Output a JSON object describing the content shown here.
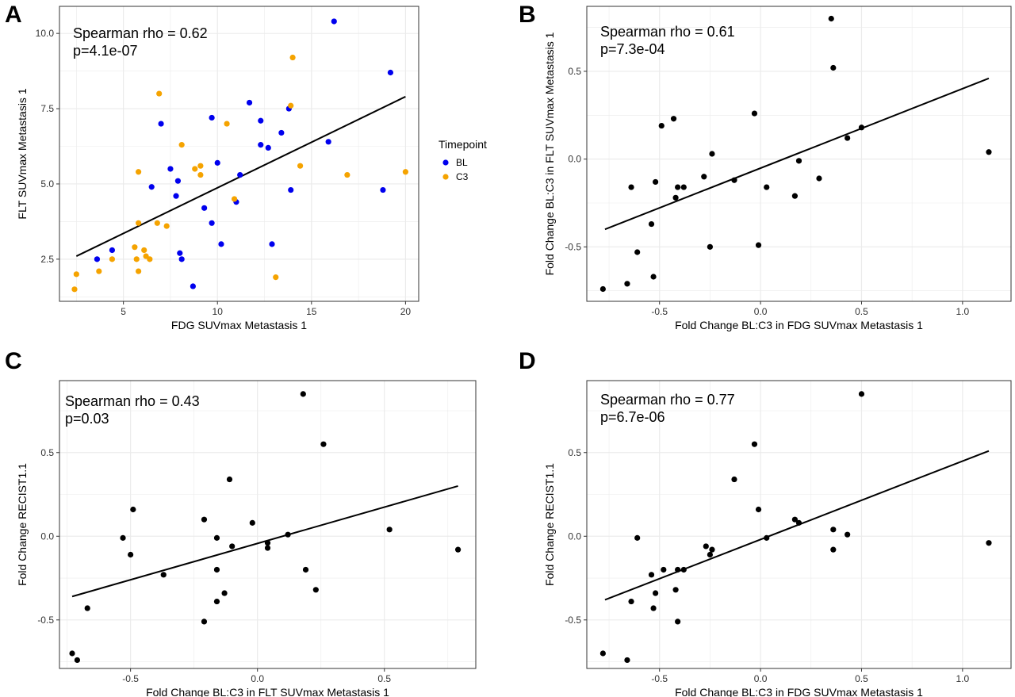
{
  "colors": {
    "BL": "#0000ee",
    "C3": "#f5a300",
    "points": "#000000",
    "grid": "#ebebeb",
    "frame": "#333333"
  },
  "chart_data": [
    {
      "panel": "A",
      "type": "scatter",
      "xlabel": "FDG SUVmax Metastasis 1",
      "ylabel": "FLT SUVmax Metastasis 1",
      "annotation": [
        "Spearman rho = 0.62",
        "p=4.1e-07"
      ],
      "xlim": [
        1.6,
        20.7
      ],
      "ylim": [
        1.1,
        10.9
      ],
      "xticks": [
        5,
        10,
        15,
        20
      ],
      "xtick_labels": [
        "5",
        "10",
        "15",
        "20"
      ],
      "yticks": [
        2.5,
        5.0,
        7.5,
        10.0
      ],
      "ytick_labels": [
        "2.5",
        "5.0",
        "7.5",
        "10.0"
      ],
      "legend": {
        "title": "Timepoint",
        "entries": [
          "BL",
          "C3"
        ],
        "placement": "right"
      },
      "fit_line": [
        [
          2.5,
          2.6
        ],
        [
          20.0,
          7.9
        ]
      ],
      "series": [
        {
          "name": "BL",
          "color_key": "BL",
          "points": [
            [
              16.2,
              10.4
            ],
            [
              19.2,
              8.7
            ],
            [
              11.7,
              7.7
            ],
            [
              13.8,
              7.5
            ],
            [
              9.7,
              7.2
            ],
            [
              12.3,
              7.1
            ],
            [
              7.0,
              7.0
            ],
            [
              13.4,
              6.7
            ],
            [
              12.3,
              6.3
            ],
            [
              12.7,
              6.2
            ],
            [
              15.9,
              6.4
            ],
            [
              10.0,
              5.7
            ],
            [
              7.5,
              5.5
            ],
            [
              11.2,
              5.3
            ],
            [
              7.9,
              5.1
            ],
            [
              6.5,
              4.9
            ],
            [
              13.9,
              4.8
            ],
            [
              18.8,
              4.8
            ],
            [
              7.8,
              4.6
            ],
            [
              11.0,
              4.4
            ],
            [
              9.3,
              4.2
            ],
            [
              9.7,
              3.7
            ],
            [
              10.2,
              3.0
            ],
            [
              12.9,
              3.0
            ],
            [
              4.4,
              2.8
            ],
            [
              8.0,
              2.7
            ],
            [
              3.6,
              2.5
            ],
            [
              8.1,
              2.5
            ],
            [
              8.7,
              1.6
            ]
          ]
        },
        {
          "name": "C3",
          "color_key": "C3",
          "points": [
            [
              14.0,
              9.2
            ],
            [
              6.9,
              8.0
            ],
            [
              13.9,
              7.6
            ],
            [
              10.5,
              7.0
            ],
            [
              8.1,
              6.3
            ],
            [
              5.8,
              5.4
            ],
            [
              14.4,
              5.6
            ],
            [
              9.1,
              5.6
            ],
            [
              8.8,
              5.5
            ],
            [
              9.1,
              5.3
            ],
            [
              16.9,
              5.3
            ],
            [
              20.0,
              5.4
            ],
            [
              10.9,
              4.5
            ],
            [
              5.8,
              3.7
            ],
            [
              6.8,
              3.7
            ],
            [
              7.3,
              3.6
            ],
            [
              5.6,
              2.9
            ],
            [
              6.1,
              2.8
            ],
            [
              6.2,
              2.6
            ],
            [
              4.4,
              2.5
            ],
            [
              5.7,
              2.5
            ],
            [
              6.4,
              2.5
            ],
            [
              3.7,
              2.1
            ],
            [
              5.8,
              2.1
            ],
            [
              2.5,
              2.0
            ],
            [
              13.1,
              1.9
            ],
            [
              2.4,
              1.5
            ]
          ]
        }
      ]
    },
    {
      "panel": "B",
      "type": "scatter",
      "xlabel": "Fold Change BL:C3 in FDG SUVmax Metastasis 1",
      "ylabel": "Fold Change BL:C3 in FLT SUVmax Metastasis 1",
      "annotation": [
        "Spearman rho = 0.61",
        "p=7.3e-04"
      ],
      "xlim": [
        -0.86,
        1.24
      ],
      "ylim": [
        -0.81,
        0.87
      ],
      "xticks": [
        -0.5,
        0.0,
        0.5,
        1.0
      ],
      "xtick_labels": [
        "-0.5",
        "0.0",
        "0.5",
        "1.0"
      ],
      "yticks": [
        -0.5,
        0.0,
        0.5
      ],
      "ytick_labels": [
        "-0.5",
        "0.0",
        "0.5"
      ],
      "fit_line": [
        [
          -0.77,
          -0.4
        ],
        [
          1.13,
          0.46
        ]
      ],
      "series": [
        {
          "name": "",
          "color_key": "points",
          "points": [
            [
              0.35,
              0.8
            ],
            [
              0.36,
              0.52
            ],
            [
              -0.43,
              0.23
            ],
            [
              -0.49,
              0.19
            ],
            [
              -0.03,
              0.26
            ],
            [
              0.5,
              0.18
            ],
            [
              0.43,
              0.12
            ],
            [
              1.13,
              0.04
            ],
            [
              -0.24,
              0.03
            ],
            [
              0.19,
              -0.01
            ],
            [
              -0.28,
              -0.1
            ],
            [
              0.29,
              -0.11
            ],
            [
              -0.13,
              -0.12
            ],
            [
              -0.52,
              -0.13
            ],
            [
              -0.64,
              -0.16
            ],
            [
              -0.41,
              -0.16
            ],
            [
              -0.38,
              -0.16
            ],
            [
              0.03,
              -0.16
            ],
            [
              -0.42,
              -0.22
            ],
            [
              0.17,
              -0.21
            ],
            [
              -0.54,
              -0.37
            ],
            [
              -0.25,
              -0.5
            ],
            [
              -0.01,
              -0.49
            ],
            [
              -0.61,
              -0.53
            ],
            [
              -0.53,
              -0.67
            ],
            [
              -0.66,
              -0.71
            ],
            [
              -0.78,
              -0.74
            ]
          ]
        }
      ]
    },
    {
      "panel": "C",
      "type": "scatter",
      "xlabel": "Fold Change BL:C3 in FLT SUVmax Metastasis 1",
      "ylabel": "Fold Change RECIST1.1",
      "annotation": [
        "Spearman rho = 0.43",
        "p=0.03"
      ],
      "xlim": [
        -0.78,
        0.86
      ],
      "ylim": [
        -0.79,
        0.93
      ],
      "xticks": [
        -0.5,
        0.0,
        0.5
      ],
      "xtick_labels": [
        "-0.5",
        "0.0",
        "0.5"
      ],
      "yticks": [
        -0.5,
        0.0,
        0.5
      ],
      "ytick_labels": [
        "-0.5",
        "0.0",
        "0.5"
      ],
      "fit_line": [
        [
          -0.73,
          -0.36
        ],
        [
          0.79,
          0.3
        ]
      ],
      "series": [
        {
          "name": "",
          "color_key": "points",
          "points": [
            [
              0.18,
              0.85
            ],
            [
              0.26,
              0.55
            ],
            [
              -0.11,
              0.34
            ],
            [
              -0.49,
              0.16
            ],
            [
              -0.21,
              0.1
            ],
            [
              -0.02,
              0.08
            ],
            [
              0.52,
              0.04
            ],
            [
              0.12,
              0.01
            ],
            [
              -0.53,
              -0.01
            ],
            [
              -0.16,
              -0.01
            ],
            [
              0.04,
              -0.04
            ],
            [
              -0.1,
              -0.06
            ],
            [
              0.04,
              -0.07
            ],
            [
              0.79,
              -0.08
            ],
            [
              -0.5,
              -0.11
            ],
            [
              -0.16,
              -0.2
            ],
            [
              0.19,
              -0.2
            ],
            [
              -0.37,
              -0.23
            ],
            [
              -0.13,
              -0.34
            ],
            [
              0.23,
              -0.32
            ],
            [
              -0.16,
              -0.39
            ],
            [
              -0.67,
              -0.43
            ],
            [
              -0.21,
              -0.51
            ],
            [
              -0.73,
              -0.7
            ],
            [
              -0.71,
              -0.74
            ]
          ]
        }
      ]
    },
    {
      "panel": "D",
      "type": "scatter",
      "xlabel": "Fold Change BL:C3 in FDG SUVmax Metastasis 1",
      "ylabel": "Fold Change RECIST1.1",
      "annotation": [
        "Spearman rho = 0.77",
        "p=6.7e-06"
      ],
      "xlim": [
        -0.86,
        1.24
      ],
      "ylim": [
        -0.79,
        0.93
      ],
      "xticks": [
        -0.5,
        0.0,
        0.5,
        1.0
      ],
      "xtick_labels": [
        "-0.5",
        "0.0",
        "0.5",
        "1.0"
      ],
      "yticks": [
        -0.5,
        0.0,
        0.5
      ],
      "ytick_labels": [
        "-0.5",
        "0.0",
        "0.5"
      ],
      "fit_line": [
        [
          -0.77,
          -0.38
        ],
        [
          1.13,
          0.51
        ]
      ],
      "series": [
        {
          "name": "",
          "color_key": "points",
          "points": [
            [
              0.5,
              0.85
            ],
            [
              -0.03,
              0.55
            ],
            [
              -0.13,
              0.34
            ],
            [
              -0.01,
              0.16
            ],
            [
              0.17,
              0.1
            ],
            [
              0.19,
              0.08
            ],
            [
              0.36,
              0.04
            ],
            [
              0.43,
              0.01
            ],
            [
              -0.61,
              -0.01
            ],
            [
              0.03,
              -0.01
            ],
            [
              -0.27,
              -0.06
            ],
            [
              -0.24,
              -0.08
            ],
            [
              1.13,
              -0.04
            ],
            [
              0.36,
              -0.08
            ],
            [
              -0.25,
              -0.11
            ],
            [
              -0.48,
              -0.2
            ],
            [
              -0.41,
              -0.2
            ],
            [
              -0.38,
              -0.2
            ],
            [
              -0.54,
              -0.23
            ],
            [
              -0.42,
              -0.32
            ],
            [
              -0.52,
              -0.34
            ],
            [
              -0.64,
              -0.39
            ],
            [
              -0.53,
              -0.43
            ],
            [
              -0.41,
              -0.51
            ],
            [
              -0.78,
              -0.7
            ],
            [
              -0.66,
              -0.74
            ]
          ]
        }
      ]
    }
  ]
}
